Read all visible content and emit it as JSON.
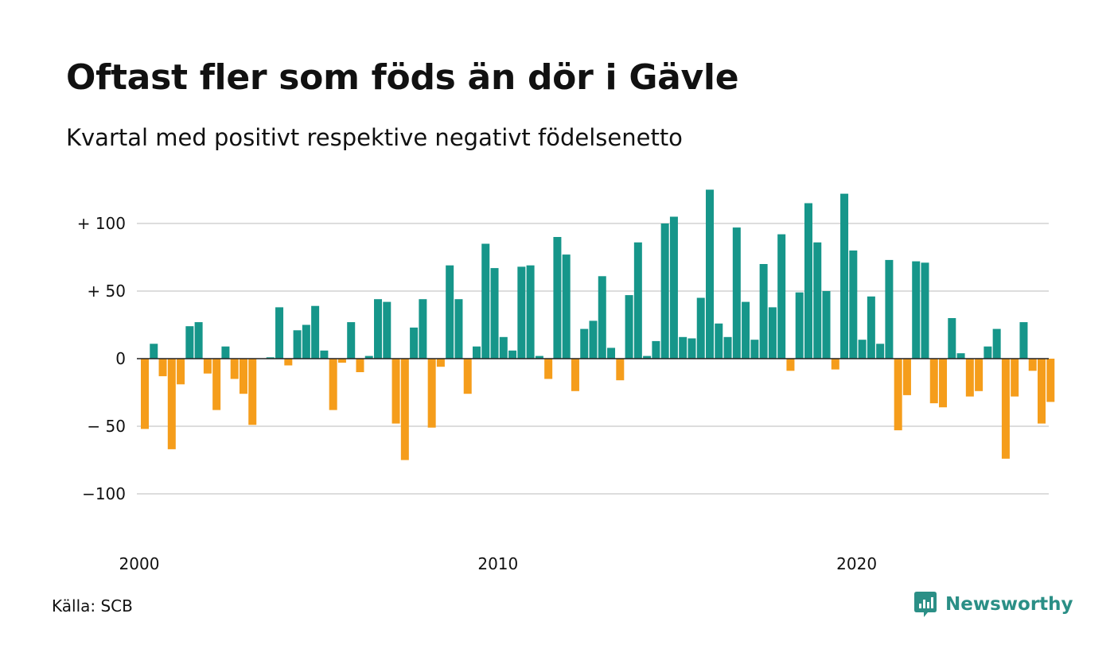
{
  "title": "Oftast fler som föds än dör i Gävle",
  "subtitle": "Kvartal med positivt respektive negativt födelsenetto",
  "source": "Källa: SCB",
  "brand": {
    "name": "Newsworthy",
    "icon": "newsworthy-logo-icon",
    "color": "#2b8f86"
  },
  "colors": {
    "positive": "#16968a",
    "negative": "#f59d1b",
    "grid": "#dddddd",
    "zero_line": "#222222"
  },
  "chart_data": {
    "type": "bar",
    "title": "Oftast fler som föds än dör i Gävle",
    "subtitle": "Kvartal med positivt respektive negativt födelsenetto",
    "xlabel": "",
    "ylabel": "",
    "ylim": [
      -135,
      125
    ],
    "grid": true,
    "legend": "none",
    "y_ticks": [
      {
        "value": 100,
        "label": "+ 100"
      },
      {
        "value": 50,
        "label": "+  50"
      },
      {
        "value": 0,
        "label": "0"
      },
      {
        "value": -50,
        "label": "− 50"
      },
      {
        "value": -100,
        "label": "−100"
      }
    ],
    "x_ticks": [
      {
        "index": 0,
        "label": "2000"
      },
      {
        "index": 40,
        "label": "2010"
      },
      {
        "index": 80,
        "label": "2020"
      }
    ],
    "first_period": "2000 K1",
    "values": [
      -52,
      11,
      -13,
      -67,
      -19,
      24,
      27,
      -11,
      -38,
      9,
      -15,
      -26,
      -49,
      0,
      1,
      38,
      -5,
      21,
      25,
      39,
      6,
      -38,
      -3,
      27,
      -10,
      2,
      44,
      42,
      -48,
      -75,
      23,
      44,
      -51,
      -6,
      69,
      44,
      -26,
      9,
      85,
      67,
      16,
      6,
      68,
      69,
      2,
      -15,
      90,
      77,
      -24,
      22,
      28,
      61,
      8,
      -16,
      47,
      86,
      2,
      13,
      100,
      105,
      16,
      15,
      45,
      125,
      26,
      16,
      97,
      42,
      14,
      70,
      38,
      92,
      -9,
      49,
      115,
      86,
      50,
      -8,
      122,
      80,
      14,
      46,
      11,
      73,
      -53,
      -27,
      72,
      71,
      -33,
      -36,
      30,
      4,
      -28,
      -24,
      9,
      22,
      -74,
      -28,
      27,
      -9,
      -48,
      -32
    ]
  }
}
